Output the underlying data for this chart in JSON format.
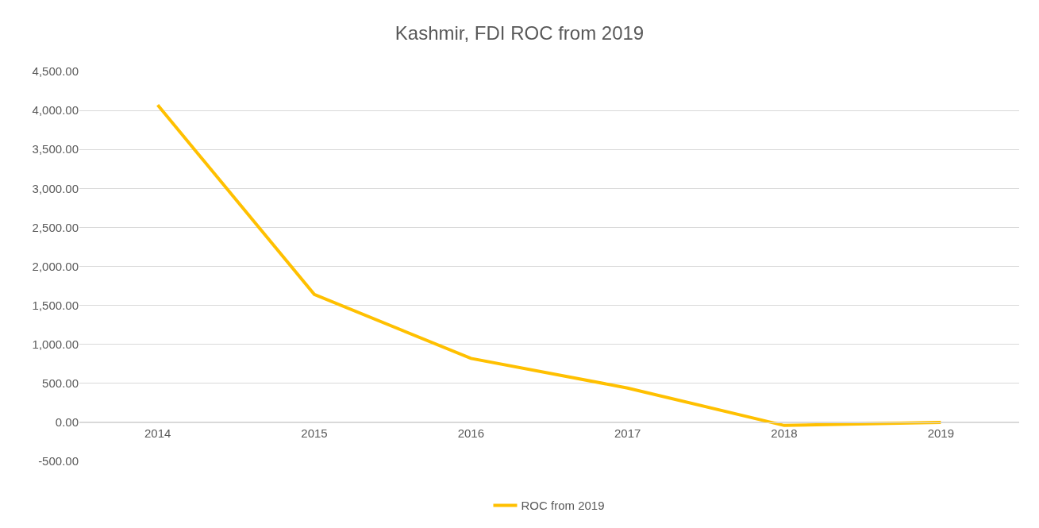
{
  "chart_data": {
    "type": "line",
    "title": "Kashmir, FDI ROC from 2019",
    "categories": [
      "2014",
      "2015",
      "2016",
      "2017",
      "2018",
      "2019"
    ],
    "series": [
      {
        "name": "ROC from 2019",
        "color": "#ffc000",
        "values": [
          4070,
          1640,
          820,
          440,
          -40,
          0
        ]
      }
    ],
    "ylim": [
      -500,
      4500
    ],
    "yticks": [
      {
        "value": -500,
        "label": "-500.00"
      },
      {
        "value": 0,
        "label": "0.00"
      },
      {
        "value": 500,
        "label": "500.00"
      },
      {
        "value": 1000,
        "label": "1,000.00"
      },
      {
        "value": 1500,
        "label": "1,500.00"
      },
      {
        "value": 2000,
        "label": "2,000.00"
      },
      {
        "value": 2500,
        "label": "2,500.00"
      },
      {
        "value": 3000,
        "label": "3,000.00"
      },
      {
        "value": 3500,
        "label": "3,500.00"
      },
      {
        "value": 4000,
        "label": "4,000.00"
      },
      {
        "value": 4500,
        "label": "4,500.00"
      }
    ],
    "grid": "y",
    "legend": "bottom",
    "marker": "none",
    "line_style": "solid"
  }
}
